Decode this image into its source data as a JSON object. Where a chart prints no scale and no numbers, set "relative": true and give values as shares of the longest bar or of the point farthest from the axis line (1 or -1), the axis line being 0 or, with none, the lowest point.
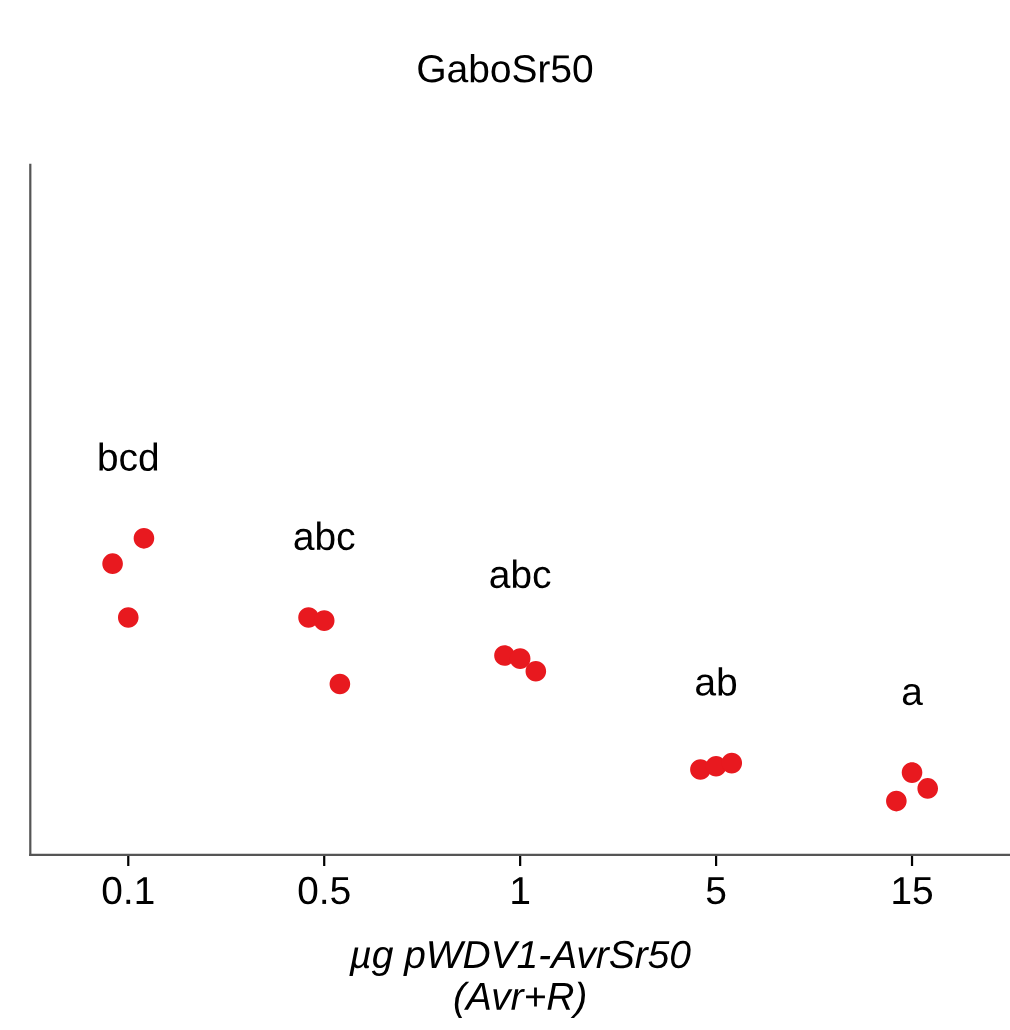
{
  "chart_data": {
    "type": "scatter",
    "title": "GaboSr50",
    "xlabel": "µg pWDV1-AvrSr50\n(Avr+R)",
    "categories": [
      "0.1",
      "0.5",
      "1",
      "5",
      "15"
    ],
    "relative": true,
    "marker": "circle",
    "grid": false,
    "legend": false,
    "series": [
      {
        "color": "#e8191f",
        "values": [
          0.92,
          0.75,
          0.63,
          0.27,
          0.17
        ]
      },
      {
        "color": "#e8191f",
        "values": [
          0.75,
          0.74,
          0.62,
          0.28,
          0.26
        ]
      },
      {
        "color": "#e8191f",
        "values": [
          1.0,
          0.54,
          0.58,
          0.29,
          0.21
        ]
      }
    ],
    "annotations": [
      "bcd",
      "abc",
      "abc",
      "ab",
      "a"
    ]
  }
}
